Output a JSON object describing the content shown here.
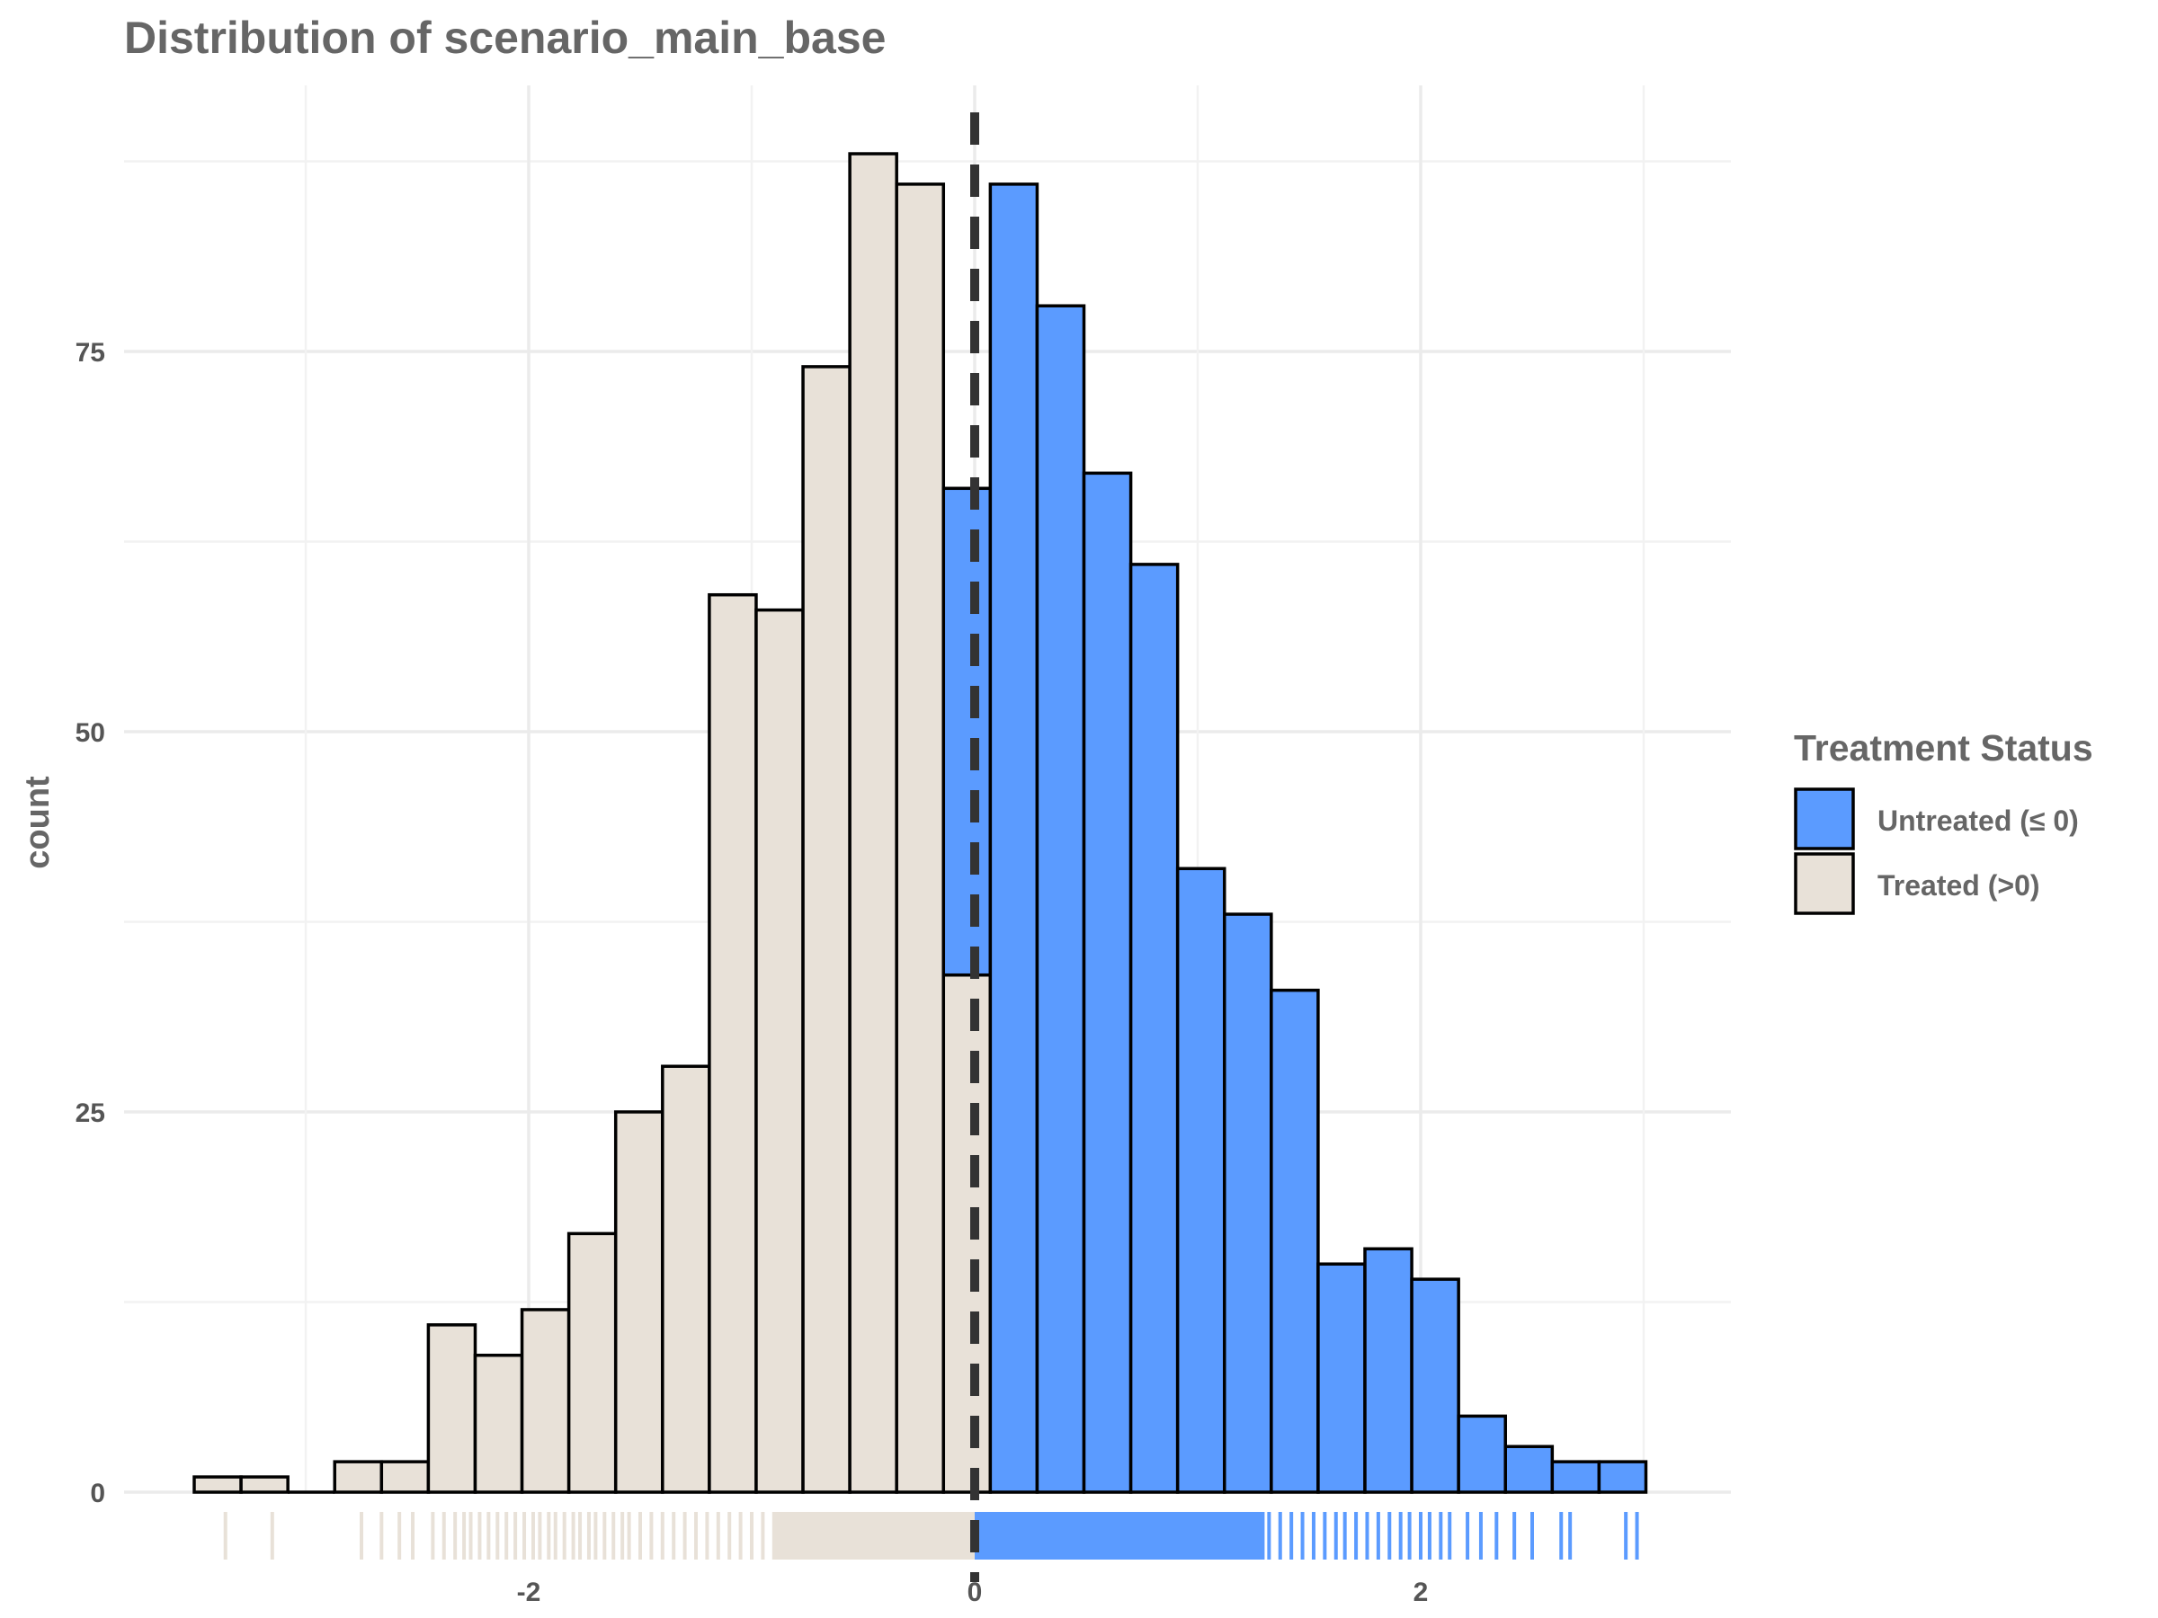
{
  "chart_data": {
    "type": "bar",
    "subtype": "stacked-histogram",
    "title": "Distribution of  scenario_main_base",
    "xlabel": "",
    "ylabel": "count",
    "xlim": [
      -3.5,
      3.4
    ],
    "ylim": [
      0,
      88
    ],
    "x_ticks": [
      -2,
      0,
      2
    ],
    "x_tick_labels": [
      "-2",
      "0",
      "2"
    ],
    "y_ticks": [
      0,
      25,
      50,
      75
    ],
    "y_tick_labels": [
      "0",
      "25",
      "50",
      "75"
    ],
    "grid": true,
    "vline": {
      "x": 0,
      "style": "dashed",
      "color": "#333333"
    },
    "bins": {
      "edges": [
        -3.5,
        -3.29,
        -3.08,
        -2.87,
        -2.66,
        -2.45,
        -2.24,
        -2.03,
        -1.82,
        -1.61,
        -1.4,
        -1.19,
        -0.98,
        -0.77,
        -0.56,
        -0.35,
        -0.14,
        0.07,
        0.28,
        0.49,
        0.7,
        0.91,
        1.12,
        1.33,
        1.54,
        1.75,
        1.96,
        2.17,
        2.38,
        2.59,
        2.8,
        3.01
      ]
    },
    "series": [
      {
        "name": "Untreated (≤ 0)",
        "color": "#5b9bff",
        "values": [
          0,
          0,
          0,
          0,
          0,
          0,
          0,
          0,
          0,
          0,
          0,
          0,
          0,
          0,
          0,
          0,
          32,
          86,
          78,
          67,
          61,
          41,
          38,
          33,
          15,
          16,
          14,
          5,
          3,
          2,
          2
        ]
      },
      {
        "name": "Treated (>0)",
        "color": "#e8e1d8",
        "values": [
          1,
          1,
          0,
          2,
          2,
          11,
          9,
          12,
          17,
          25,
          28,
          59,
          58,
          74,
          88,
          86,
          34,
          0,
          0,
          0,
          0,
          0,
          0,
          0,
          0,
          0,
          0,
          0,
          0,
          0,
          0
        ]
      }
    ],
    "legend": {
      "title": "Treatment Status",
      "position": "right",
      "items": [
        {
          "label": "Untreated (≤ 0)",
          "color": "#5b9bff"
        },
        {
          "label": "Treated (>0)",
          "color": "#e8e1d8"
        }
      ]
    },
    "rug": {
      "treated_x": [
        -3.36,
        -3.15,
        -2.75,
        -2.66,
        -2.58,
        -2.52,
        -2.43,
        -2.38,
        -2.33,
        -2.29,
        -2.26,
        -2.22,
        -2.18,
        -2.14,
        -2.1,
        -2.06,
        -2.02,
        -1.98,
        -1.95,
        -1.91,
        -1.88,
        -1.84,
        -1.8,
        -1.77,
        -1.73,
        -1.7,
        -1.66,
        -1.62,
        -1.58,
        -1.55,
        -1.5,
        -1.45,
        -1.4,
        -1.35,
        -1.3,
        -1.25,
        -1.2,
        -1.15,
        -1.1,
        -1.05,
        -1.0,
        -0.95,
        -0.9,
        -0.85,
        -0.8,
        -0.75,
        -0.7,
        -0.65,
        -0.6,
        -0.55,
        -0.5,
        -0.45,
        -0.4,
        -0.35,
        -0.3,
        -0.25,
        -0.2,
        -0.15,
        -0.1,
        -0.05,
        0.0
      ],
      "untreated_x": [
        0.02,
        0.07,
        0.12,
        0.17,
        0.22,
        0.27,
        0.32,
        0.37,
        0.42,
        0.47,
        0.52,
        0.57,
        0.62,
        0.67,
        0.72,
        0.77,
        0.82,
        0.87,
        0.92,
        0.97,
        1.02,
        1.07,
        1.12,
        1.17,
        1.22,
        1.27,
        1.32,
        1.37,
        1.42,
        1.47,
        1.52,
        1.57,
        1.62,
        1.66,
        1.71,
        1.76,
        1.81,
        1.86,
        1.91,
        1.95,
        2.0,
        2.04,
        2.09,
        2.13,
        2.21,
        2.27,
        2.34,
        2.42,
        2.5,
        2.63,
        2.67,
        2.92,
        2.97
      ]
    }
  }
}
